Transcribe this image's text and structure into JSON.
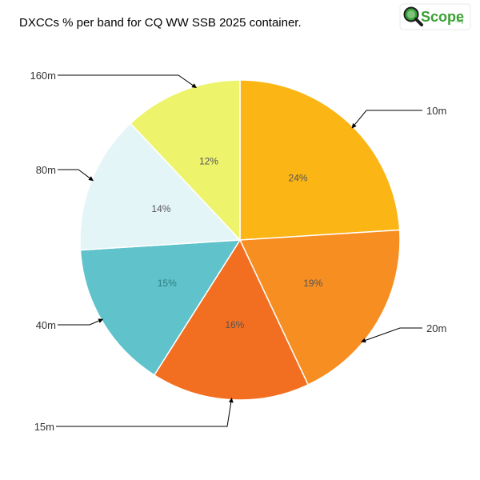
{
  "chart_data": {
    "type": "pie",
    "title": "DXCCs % per band for CQ WW SSB 2025 container.",
    "categories": [
      "10m",
      "20m",
      "15m",
      "40m",
      "80m",
      "160m"
    ],
    "values": [
      24,
      19,
      16,
      15,
      14,
      12
    ],
    "labels": [
      "24%",
      "19%",
      "16%",
      "15%",
      "14%",
      "12%"
    ],
    "colors": [
      "#fbb515",
      "#f78e22",
      "#f26f22",
      "#60c2cb",
      "#e4f5f8",
      "#eef36c"
    ],
    "label_colors": [
      "#555555",
      "#555555",
      "#555555",
      "#2f7d80",
      "#555555",
      "#555555"
    ],
    "start_angle_deg": 0,
    "direction": "clockwise"
  },
  "logo": {
    "name": "Scope",
    "suffix": ".org",
    "icon": "magnifier-icon",
    "colors": {
      "green": "#3aa035",
      "dark": "#1c1c1c",
      "lens": "#39a13a"
    }
  }
}
